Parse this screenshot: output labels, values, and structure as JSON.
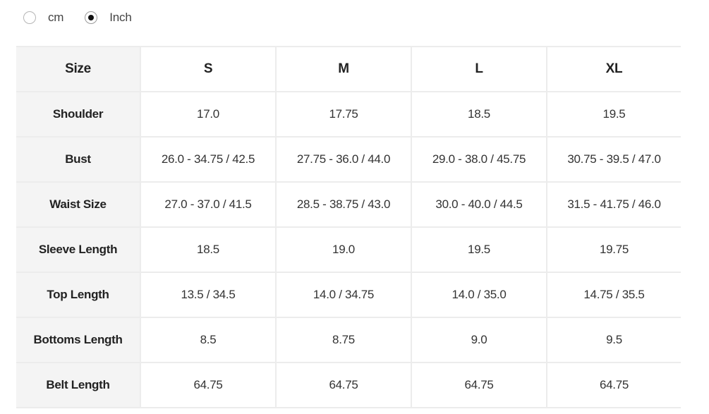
{
  "unit_toggle": {
    "options": [
      {
        "label": "cm",
        "selected": false
      },
      {
        "label": "Inch",
        "selected": true
      }
    ]
  },
  "size_table": {
    "header": [
      "Size",
      "S",
      "M",
      "L",
      "XL"
    ],
    "rows": [
      {
        "label": "Shoulder",
        "values": [
          "17.0",
          "17.75",
          "18.5",
          "19.5"
        ]
      },
      {
        "label": "Bust",
        "values": [
          "26.0 - 34.75 / 42.5",
          "27.75 - 36.0 / 44.0",
          "29.0 - 38.0 / 45.75",
          "30.75 - 39.5 / 47.0"
        ]
      },
      {
        "label": "Waist Size",
        "values": [
          "27.0 - 37.0 / 41.5",
          "28.5 - 38.75 / 43.0",
          "30.0 - 40.0 / 44.5",
          "31.5 - 41.75 / 46.0"
        ]
      },
      {
        "label": "Sleeve Length",
        "values": [
          "18.5",
          "19.0",
          "19.5",
          "19.75"
        ]
      },
      {
        "label": "Top Length",
        "values": [
          "13.5 / 34.5",
          "14.0 / 34.75",
          "14.0 / 35.0",
          "14.75 / 35.5"
        ]
      },
      {
        "label": "Bottoms Length",
        "values": [
          "8.5",
          "8.75",
          "9.0",
          "9.5"
        ]
      },
      {
        "label": "Belt Length",
        "values": [
          "64.75",
          "64.75",
          "64.75",
          "64.75"
        ]
      }
    ]
  },
  "colors": {
    "label_column_bg": "#f4f4f4",
    "grid_line": "#ececec",
    "radio_dot": "#111111"
  }
}
